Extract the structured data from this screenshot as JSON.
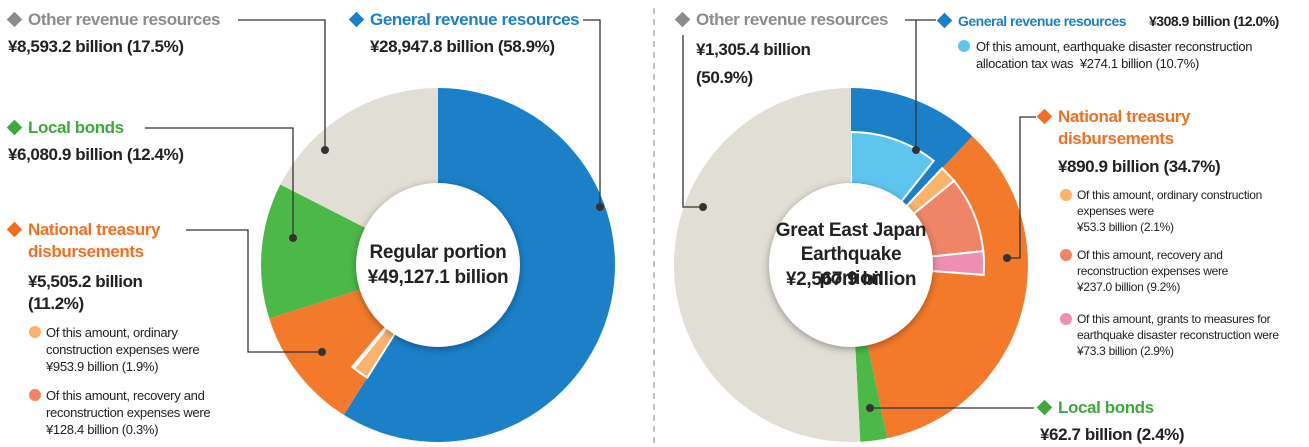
{
  "chart_data": [
    {
      "type": "pie",
      "title": "Regular portion",
      "total": 49127.1,
      "total_label": "¥49,127.1 billion",
      "segments": [
        {
          "name": "General revenue resources",
          "color": "#1b80c8",
          "value": 28947.8,
          "value_label": "¥28,947.8 billion (58.9%)"
        },
        {
          "name": "National treasury disbursements",
          "color": "#f47a2b",
          "value": 5505.2,
          "value_label": "¥5,505.2 billion (11.2%)",
          "parts": [
            {
              "name": "Of this amount, ordinary construction expenses were",
              "color": "#f9b36b",
              "value": 953.9,
              "value_label": "¥953.9 billion (1.9%)"
            },
            {
              "name": "Of this amount, recovery and reconstruction expenses were",
              "color": "#ef8466",
              "value": 128.4,
              "value_label": "¥128.4 billion (0.3%)"
            }
          ]
        },
        {
          "name": "Local bonds",
          "color": "#4cb848",
          "value": 6080.9,
          "value_label": "¥6,080.9 billion (12.4%)"
        },
        {
          "name": "Other revenue resources",
          "color": "#e1ded5",
          "value": 8593.2,
          "value_label": "¥8,593.2 billion (17.5%)"
        }
      ]
    },
    {
      "type": "pie",
      "title": "Great East Japan Earthquake portion",
      "total": 2567.9,
      "total_label": "¥2,567.9 billion",
      "segments": [
        {
          "name": "General revenue resources",
          "color": "#1b80c8",
          "value": 308.9,
          "value_label": "¥308.9 billion (12.0%)",
          "parts": [
            {
              "name": "Of this amount, earthquake disaster reconstruction allocation tax was",
              "color": "#5ec5ef",
              "value": 274.1,
              "value_label": "¥274.1 billion (10.7%)"
            }
          ]
        },
        {
          "name": "National treasury disbursements",
          "color": "#f47a2b",
          "value": 890.9,
          "value_label": "¥890.9 billion (34.7%)",
          "parts": [
            {
              "name": "Of this amount, ordinary construction expenses were",
              "color": "#f9b36b",
              "value": 53.3,
              "value_label": "¥53.3 billion (2.1%)"
            },
            {
              "name": "Of this amount, recovery and reconstruction expenses were",
              "color": "#ef8466",
              "value": 237.0,
              "value_label": "¥237.0 billion (9.2%)"
            },
            {
              "name": "Of this amount, grants to measures for earthquake disaster reconstruction were",
              "color": "#ee8fb2",
              "value": 73.3,
              "value_label": "¥73.3 billion (2.9%)"
            }
          ]
        },
        {
          "name": "Local bonds",
          "color": "#4cb848",
          "value": 62.7,
          "value_label": "¥62.7 billion (2.4%)"
        },
        {
          "name": "Other revenue resources",
          "color": "#e1ded5",
          "value": 1305.4,
          "value_label": "¥1,305.4 billion (50.9%)"
        }
      ]
    }
  ]
}
